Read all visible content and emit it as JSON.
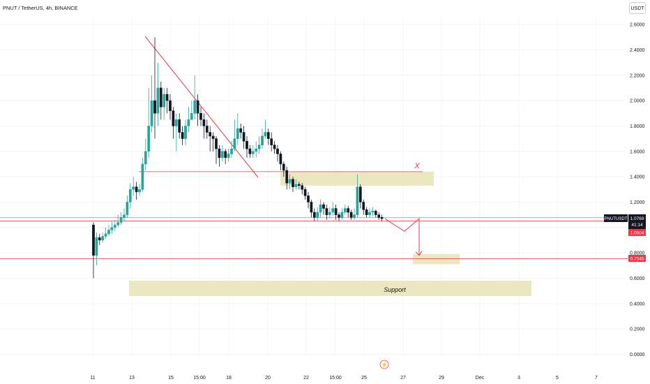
{
  "header": {
    "title": "PNUT / TetherUS, 4h, BINANCE",
    "quote_unit": "USDT"
  },
  "colors": {
    "up": "#26a69a",
    "down": "#131722",
    "line_red": "#f23645",
    "zone": "#e8e3b5",
    "grid": "#f0f3fa"
  },
  "icons": {
    "replay": "lightning-icon"
  },
  "chart_data": {
    "type": "candlestick",
    "title": "PNUT / TetherUS, 4h, BINANCE",
    "ylim": [
      0.0,
      2.6
    ],
    "y_ticks": [
      "0.0000",
      "0.2000",
      "0.4000",
      "0.6000",
      "0.8000",
      "1.0000",
      "1.2000",
      "1.4000",
      "1.6000",
      "1.8000",
      "2.0000",
      "2.2000",
      "2.4000",
      "2.6000"
    ],
    "x_ticks": [
      "11",
      "13",
      "15",
      "15:00",
      "18",
      "20",
      "22",
      "15:00",
      "25",
      "27",
      "29",
      "Dec",
      "3",
      "5",
      "7"
    ],
    "price_labels": {
      "symbol": "PNUTUSDT",
      "last": "1.0769",
      "countdown": "41:14",
      "level_1": "1.0504",
      "level_2": "0.7545"
    },
    "levels": [
      {
        "value": 1.0504,
        "color": "#f23645"
      },
      {
        "value": 0.7545,
        "color": "#f23645"
      },
      {
        "value": 1.44,
        "color": "#f23645"
      }
    ],
    "zones": [
      {
        "from": 1.33,
        "to": 1.44,
        "label": ""
      },
      {
        "from": 0.71,
        "to": 0.79,
        "label": ""
      },
      {
        "from": 0.46,
        "to": 0.58,
        "label": "Support"
      }
    ],
    "annotations": {
      "invalidation_mark": "X"
    },
    "candles": [
      [
        1.02,
        0.78,
        1.04,
        0.6
      ],
      [
        0.78,
        0.92,
        0.96,
        0.7
      ],
      [
        0.92,
        0.9,
        0.95,
        0.86
      ],
      [
        0.9,
        0.93,
        0.96,
        0.88
      ],
      [
        0.93,
        0.95,
        1.0,
        0.91
      ],
      [
        0.95,
        0.98,
        1.02,
        0.93
      ],
      [
        0.98,
        1.0,
        1.05,
        0.95
      ],
      [
        1.0,
        1.02,
        1.06,
        0.97
      ],
      [
        1.02,
        1.04,
        1.1,
        1.0
      ],
      [
        1.04,
        1.08,
        1.12,
        1.02
      ],
      [
        1.08,
        1.1,
        1.15,
        1.05
      ],
      [
        1.1,
        1.2,
        1.25,
        1.08
      ],
      [
        1.2,
        1.3,
        1.35,
        1.15
      ],
      [
        1.3,
        1.32,
        1.4,
        1.25
      ],
      [
        1.32,
        1.28,
        1.36,
        1.22
      ],
      [
        1.28,
        1.3,
        1.34,
        1.25
      ],
      [
        1.3,
        1.5,
        1.55,
        1.28
      ],
      [
        1.5,
        1.6,
        1.7,
        1.45
      ],
      [
        1.6,
        1.8,
        2.1,
        1.55
      ],
      [
        1.8,
        2.0,
        2.2,
        1.75
      ],
      [
        2.0,
        1.9,
        2.5,
        1.7
      ],
      [
        1.9,
        2.1,
        2.3,
        1.8
      ],
      [
        2.1,
        1.95,
        2.15,
        1.85
      ],
      [
        1.95,
        2.05,
        2.1,
        1.85
      ],
      [
        2.05,
        2.0,
        2.1,
        1.9
      ],
      [
        2.0,
        1.92,
        2.05,
        1.85
      ],
      [
        1.92,
        1.8,
        1.95,
        1.7
      ],
      [
        1.8,
        1.85,
        1.9,
        1.6
      ],
      [
        1.85,
        1.75,
        1.9,
        1.7
      ],
      [
        1.75,
        1.7,
        1.8,
        1.65
      ],
      [
        1.7,
        1.8,
        1.85,
        1.65
      ],
      [
        1.8,
        1.85,
        1.95,
        1.75
      ],
      [
        1.85,
        1.9,
        2.0,
        1.85
      ],
      [
        1.9,
        2.0,
        2.2,
        1.85
      ],
      [
        2.0,
        1.9,
        2.05,
        1.8
      ],
      [
        1.9,
        1.85,
        1.95,
        1.8
      ],
      [
        1.85,
        1.8,
        1.9,
        1.7
      ],
      [
        1.8,
        1.75,
        1.85,
        1.7
      ],
      [
        1.75,
        1.72,
        1.8,
        1.6
      ],
      [
        1.72,
        1.7,
        1.75,
        1.6
      ],
      [
        1.7,
        1.62,
        1.72,
        1.5
      ],
      [
        1.62,
        1.55,
        1.65,
        1.48
      ],
      [
        1.55,
        1.6,
        1.65,
        1.52
      ],
      [
        1.6,
        1.55,
        1.62,
        1.5
      ],
      [
        1.55,
        1.58,
        1.62,
        1.52
      ],
      [
        1.58,
        1.62,
        1.68,
        1.55
      ],
      [
        1.62,
        1.7,
        1.85,
        1.6
      ],
      [
        1.7,
        1.78,
        1.9,
        1.65
      ],
      [
        1.78,
        1.75,
        1.82,
        1.7
      ],
      [
        1.75,
        1.68,
        1.8,
        1.62
      ],
      [
        1.68,
        1.62,
        1.72,
        1.55
      ],
      [
        1.62,
        1.58,
        1.65,
        1.55
      ],
      [
        1.58,
        1.6,
        1.65,
        1.55
      ],
      [
        1.6,
        1.62,
        1.68,
        1.55
      ],
      [
        1.62,
        1.65,
        1.72,
        1.58
      ],
      [
        1.65,
        1.72,
        1.78,
        1.62
      ],
      [
        1.72,
        1.75,
        1.85,
        1.7
      ],
      [
        1.75,
        1.7,
        1.78,
        1.65
      ],
      [
        1.7,
        1.65,
        1.75,
        1.6
      ],
      [
        1.65,
        1.62,
        1.68,
        1.58
      ],
      [
        1.62,
        1.58,
        1.65,
        1.52
      ],
      [
        1.58,
        1.5,
        1.6,
        1.45
      ],
      [
        1.5,
        1.45,
        1.52,
        1.4
      ],
      [
        1.45,
        1.35,
        1.48,
        1.3
      ],
      [
        1.35,
        1.38,
        1.42,
        1.3
      ],
      [
        1.38,
        1.32,
        1.4,
        1.28
      ],
      [
        1.32,
        1.34,
        1.38,
        1.3
      ],
      [
        1.34,
        1.33,
        1.36,
        1.3
      ],
      [
        1.33,
        1.3,
        1.35,
        1.26
      ],
      [
        1.3,
        1.25,
        1.32,
        1.22
      ],
      [
        1.25,
        1.2,
        1.28,
        1.15
      ],
      [
        1.2,
        1.12,
        1.22,
        1.08
      ],
      [
        1.12,
        1.08,
        1.15,
        1.05
      ],
      [
        1.08,
        1.12,
        1.16,
        1.05
      ],
      [
        1.12,
        1.18,
        1.22,
        1.08
      ],
      [
        1.18,
        1.15,
        1.2,
        1.1
      ],
      [
        1.15,
        1.1,
        1.18,
        1.06
      ],
      [
        1.1,
        1.12,
        1.16,
        1.07
      ],
      [
        1.12,
        1.15,
        1.2,
        1.09
      ],
      [
        1.15,
        1.1,
        1.18,
        1.06
      ],
      [
        1.1,
        1.08,
        1.12,
        1.05
      ],
      [
        1.08,
        1.12,
        1.15,
        1.06
      ],
      [
        1.12,
        1.15,
        1.18,
        1.1
      ],
      [
        1.15,
        1.12,
        1.17,
        1.08
      ],
      [
        1.12,
        1.08,
        1.14,
        1.06
      ],
      [
        1.08,
        1.1,
        1.15,
        1.06
      ],
      [
        1.1,
        1.32,
        1.42,
        1.08
      ],
      [
        1.32,
        1.2,
        1.34,
        1.15
      ],
      [
        1.2,
        1.14,
        1.22,
        1.1
      ],
      [
        1.14,
        1.1,
        1.16,
        1.08
      ],
      [
        1.1,
        1.12,
        1.15,
        1.08
      ],
      [
        1.12,
        1.13,
        1.16,
        1.09
      ],
      [
        1.13,
        1.1,
        1.14,
        1.08
      ],
      [
        1.1,
        1.08,
        1.12,
        1.06
      ],
      [
        1.08,
        1.07,
        1.1,
        1.05
      ]
    ],
    "projection": [
      [
        1.07,
        1.04
      ],
      [
        1.04,
        0.97
      ],
      [
        0.97,
        1.07
      ],
      [
        1.07,
        0.78
      ]
    ]
  }
}
